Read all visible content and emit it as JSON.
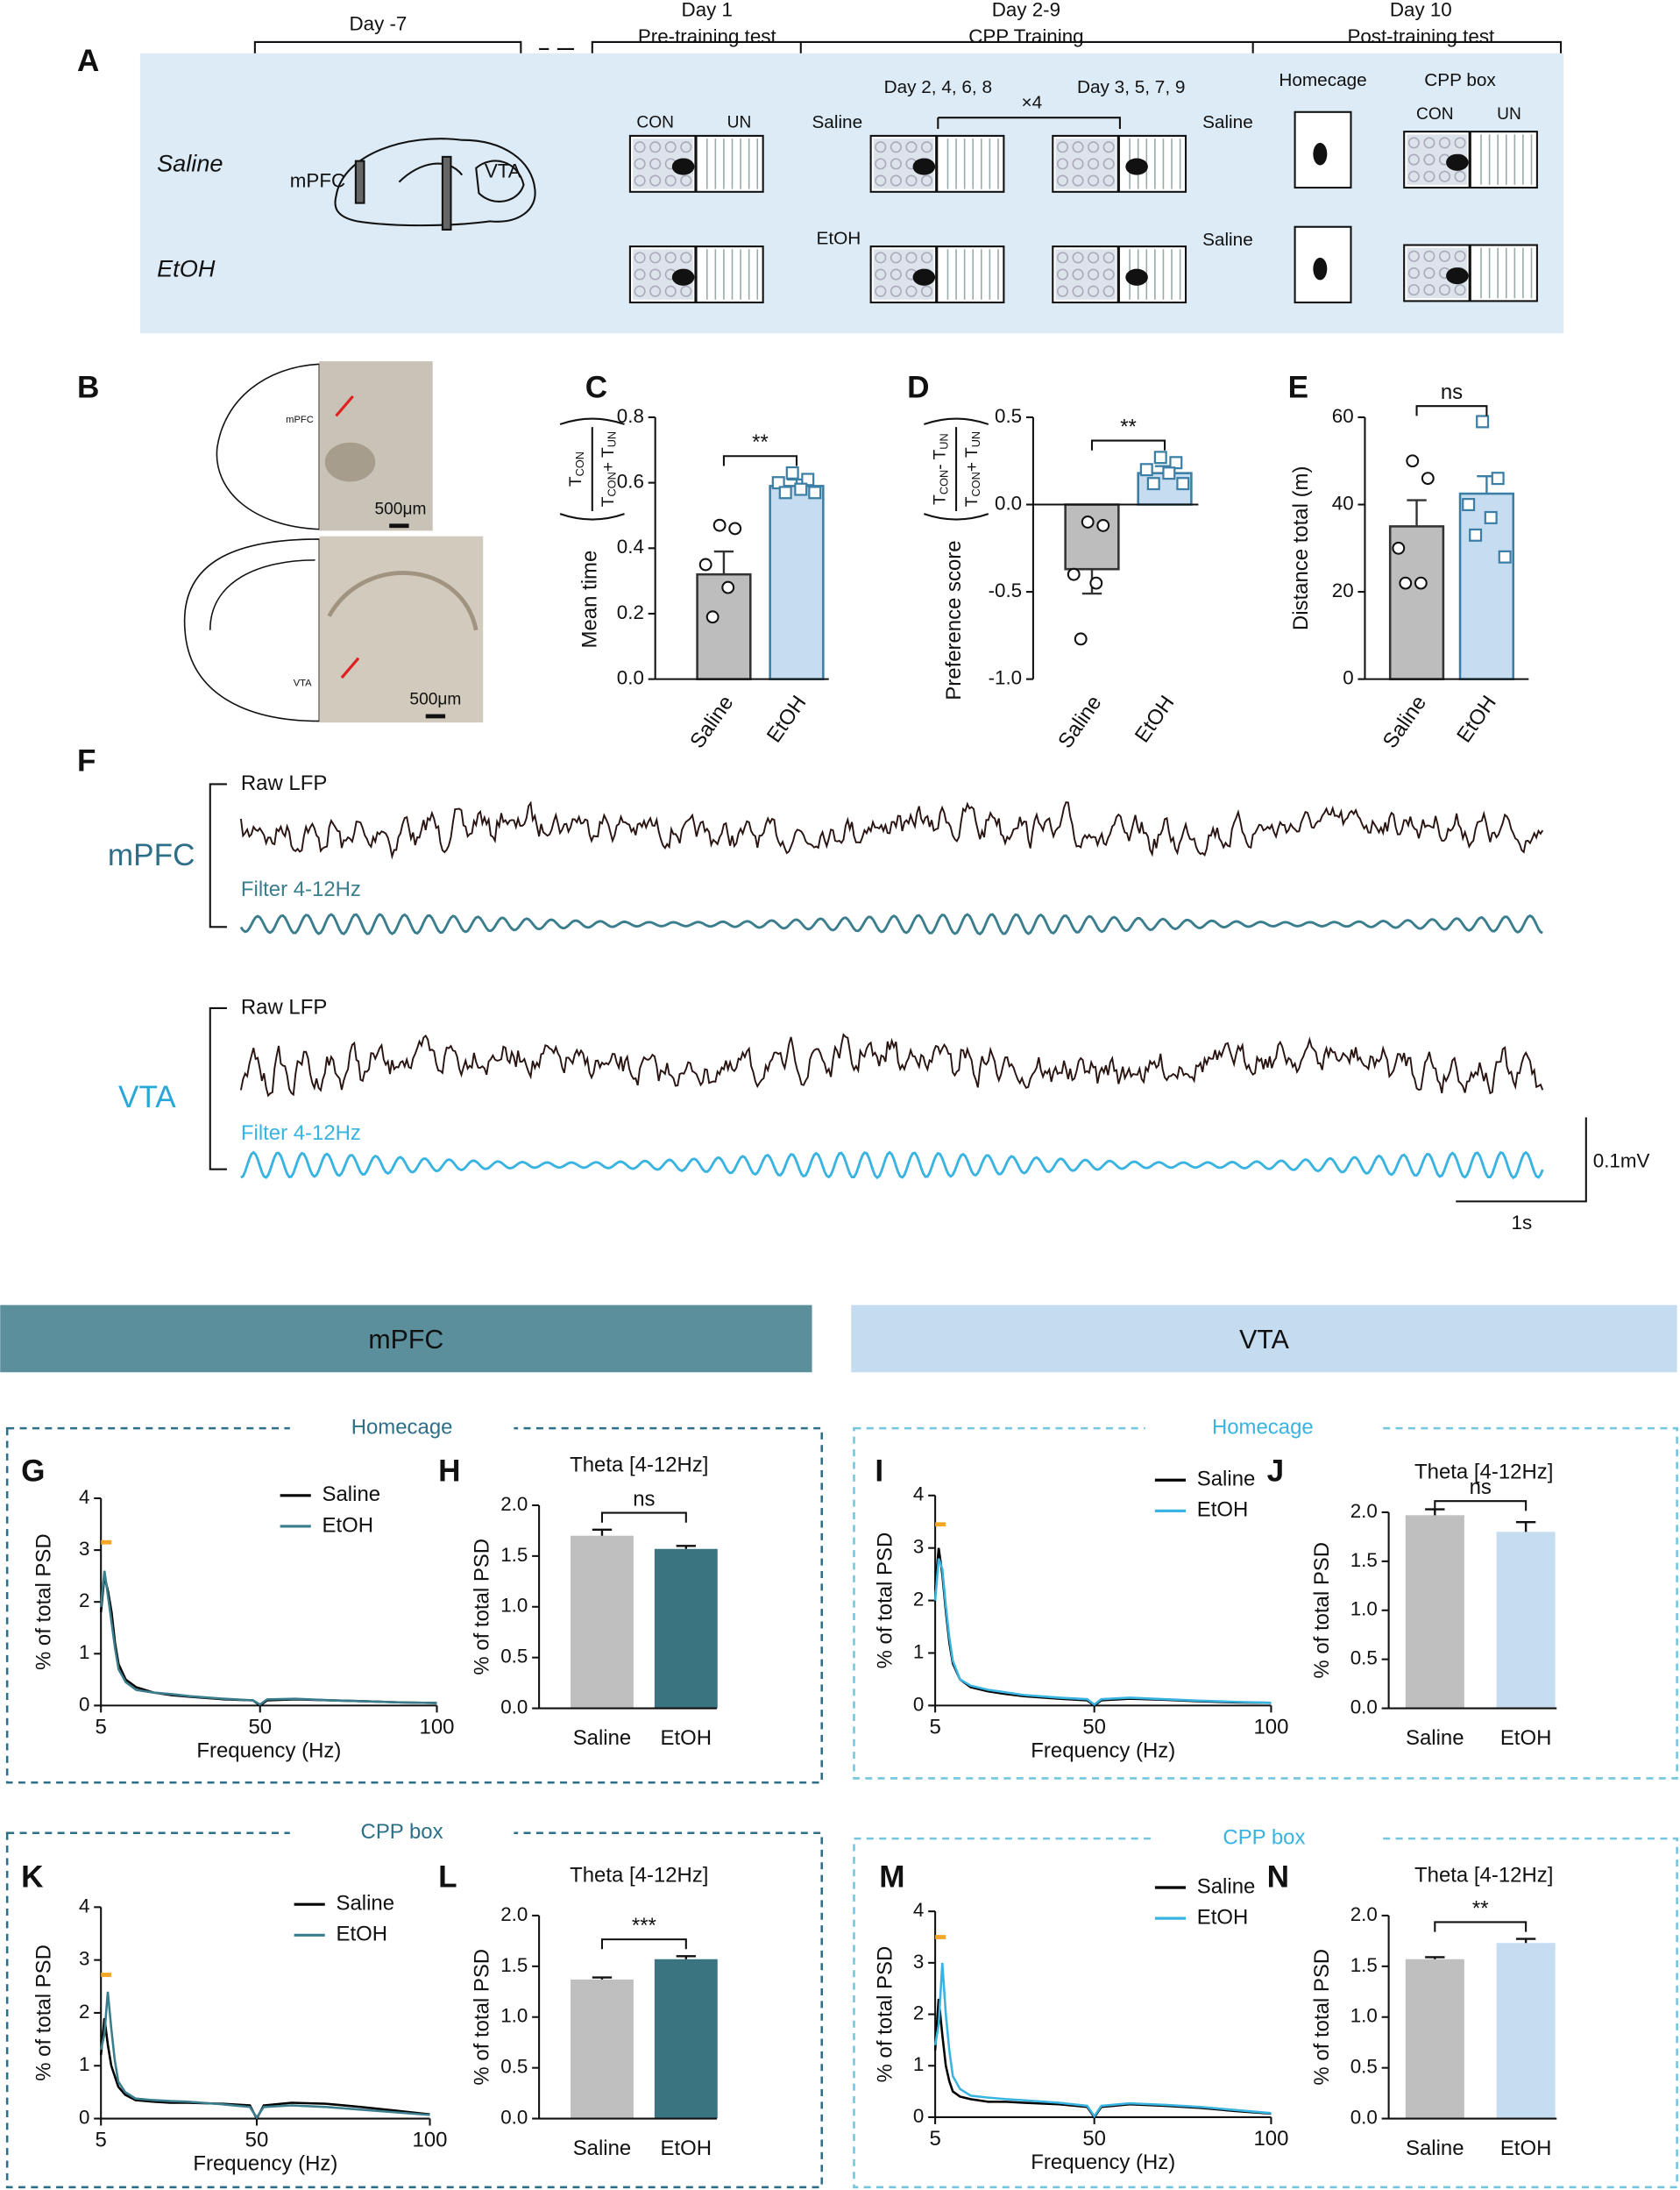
{
  "protocol": {
    "phases": [
      {
        "day": "Day -7"
      },
      {
        "day": "Day 1",
        "name": "Pre-training test"
      },
      {
        "day": "Day 2-9",
        "name": "CPP Training"
      },
      {
        "day": "Day 10",
        "name": "Post-training test"
      }
    ],
    "groups": [
      "Saline",
      "EtOH"
    ],
    "regions": [
      "mPFC",
      "VTA"
    ],
    "zones": [
      "CON",
      "UN"
    ],
    "schedule": [
      "Day 2, 4, 6, 8",
      "Day 3, 5, 7, 9"
    ],
    "repeat": "×4",
    "injections": [
      "Saline",
      "Saline",
      "EtOH",
      "Saline"
    ],
    "contexts": [
      "Homecage",
      "CPP box"
    ],
    "zones_post": [
      "CON",
      "UN"
    ]
  },
  "panels": [
    "A",
    "B",
    "F"
  ],
  "histology": {
    "labels": [
      "mPFC",
      "VTA"
    ],
    "scale_bars": [
      "500μm",
      "500μm"
    ]
  },
  "lfp": {
    "regions": [
      "mPFC",
      "VTA"
    ],
    "traces": [
      "Raw LFP",
      "Filter 4-12Hz",
      "Raw LFP",
      "Filter 4-12Hz"
    ],
    "scale_y": "0.1mV",
    "scale_x": "1s"
  },
  "sections": {
    "headers": [
      "mPFC",
      "VTA"
    ],
    "boxes": [
      "Homecage",
      "Homecage",
      "CPP box",
      "CPP box"
    ]
  },
  "chart_data": [
    {
      "panel": "C",
      "type": "bar",
      "categories": [
        "Saline",
        "EtOH"
      ],
      "values": [
        0.32,
        0.59
      ],
      "errors": [
        0.07,
        0.02
      ],
      "points": [
        [
          0.47,
          0.46,
          0.35,
          0.28,
          0.19
        ],
        [
          0.63,
          0.61,
          0.6,
          0.58,
          0.57,
          0.57
        ]
      ],
      "colors": [
        "#bdbdbd",
        "#c6dcf0"
      ],
      "edge_colors": [
        "#333333",
        "#3b7fa6"
      ],
      "point_markers": [
        "circle",
        "square"
      ],
      "y_label": "Mean time",
      "y_label_fraction": {
        "numerator": [
          "T",
          "CON"
        ],
        "denominator": [
          "T",
          "CON",
          "+ T",
          "UN"
        ]
      },
      "ylim": [
        0,
        0.8
      ],
      "yticks": [
        {
          "value": 0,
          "label": "0.0"
        },
        0.2,
        0.4,
        0.6,
        0.8
      ],
      "significance": "**"
    },
    {
      "panel": "D",
      "type": "bar",
      "categories": [
        "Saline",
        "EtOH"
      ],
      "values": [
        -0.37,
        0.18
      ],
      "errors": [
        0.14,
        0.04
      ],
      "points": [
        [
          -0.1,
          -0.12,
          -0.4,
          -0.45,
          -0.77
        ],
        [
          0.27,
          0.24,
          0.2,
          0.18,
          0.12,
          0.12
        ]
      ],
      "colors": [
        "#bdbdbd",
        "#c6dcf0"
      ],
      "edge_colors": [
        "#333333",
        "#3b7fa6"
      ],
      "point_markers": [
        "circle",
        "square"
      ],
      "y_label": "Preference score",
      "y_label_fraction": {
        "numerator": [
          "T",
          "CON",
          "- T",
          "UN"
        ],
        "denominator": [
          "T",
          "CON",
          "+ T",
          "UN"
        ]
      },
      "ylim": [
        -1,
        0.5
      ],
      "yticks": [
        {
          "value": -1,
          "label": "-1.0"
        },
        -0.5,
        {
          "value": 0,
          "label": "0.0"
        },
        0.5
      ],
      "significance": "**"
    },
    {
      "panel": "E",
      "type": "bar",
      "categories": [
        "Saline",
        "EtOH"
      ],
      "values": [
        35,
        42.5
      ],
      "errors": [
        6,
        4
      ],
      "points": [
        [
          50,
          46,
          30,
          22,
          22
        ],
        [
          59,
          46,
          40,
          37,
          33,
          28
        ]
      ],
      "colors": [
        "#bdbdbd",
        "#c6dcf0"
      ],
      "edge_colors": [
        "#333333",
        "#3b7fa6"
      ],
      "point_markers": [
        "circle",
        "square"
      ],
      "y_label": "Distance total (m)",
      "ylim": [
        0,
        60
      ],
      "yticks": [
        0,
        20,
        40,
        60
      ],
      "significance": "ns"
    },
    {
      "panel": "G",
      "type": "line",
      "x": [
        5,
        6,
        7,
        8,
        9,
        10,
        12,
        15,
        20,
        25,
        30,
        40,
        48,
        50,
        52,
        60,
        70,
        80,
        90,
        100
      ],
      "series": [
        {
          "name": "Saline",
          "color": "#000000",
          "values": [
            1.8,
            2.5,
            2.2,
            1.8,
            1.2,
            0.8,
            0.5,
            0.35,
            0.25,
            0.2,
            0.17,
            0.12,
            0.1,
            0.0,
            0.1,
            0.12,
            0.1,
            0.08,
            0.06,
            0.05
          ]
        },
        {
          "name": "EtOH",
          "color": "#3a7d8c",
          "values": [
            1.9,
            2.6,
            2.1,
            1.6,
            1.1,
            0.7,
            0.45,
            0.3,
            0.25,
            0.22,
            0.18,
            0.13,
            0.1,
            0.02,
            0.12,
            0.13,
            0.1,
            0.08,
            0.06,
            0.05
          ]
        }
      ],
      "x_label": "Frequency (Hz)",
      "y_label": "% of total PSD",
      "xlim": [
        5,
        100
      ],
      "xticks": [
        5,
        50,
        100
      ],
      "ylim": [
        0,
        4
      ],
      "yticks": [
        0,
        1,
        2,
        3,
        4
      ],
      "marker": {
        "x": [
          5,
          8
        ],
        "y": 3.15,
        "color": "#f5a623"
      }
    },
    {
      "panel": "H",
      "type": "bar",
      "title": "Theta [4-12Hz]",
      "categories": [
        "Saline",
        "EtOH"
      ],
      "values": [
        1.7,
        1.57
      ],
      "errors": [
        0.06,
        0.03
      ],
      "colors": [
        "#bfbfbf",
        "#3a7480"
      ],
      "y_label": "% of total PSD",
      "ylim": [
        0,
        2
      ],
      "yticks": [
        {
          "value": 0,
          "label": "0.0"
        },
        0.5,
        {
          "value": 1,
          "label": "1.0"
        },
        1.5,
        {
          "value": 2,
          "label": "2.0"
        }
      ],
      "significance": "ns"
    },
    {
      "panel": "I",
      "type": "line",
      "x": [
        5,
        6,
        7,
        8,
        9,
        10,
        12,
        15,
        20,
        25,
        30,
        40,
        48,
        50,
        52,
        60,
        70,
        80,
        90,
        100
      ],
      "series": [
        {
          "name": "Saline",
          "color": "#000000",
          "values": [
            2.2,
            3.0,
            2.5,
            1.8,
            1.2,
            0.8,
            0.5,
            0.35,
            0.27,
            0.22,
            0.18,
            0.13,
            0.1,
            0.0,
            0.1,
            0.13,
            0.11,
            0.08,
            0.06,
            0.05
          ]
        },
        {
          "name": "EtOH",
          "color": "#39b3e0",
          "values": [
            2.0,
            2.8,
            2.6,
            1.9,
            1.3,
            0.85,
            0.5,
            0.38,
            0.3,
            0.25,
            0.2,
            0.15,
            0.12,
            0.02,
            0.12,
            0.15,
            0.12,
            0.09,
            0.07,
            0.05
          ]
        }
      ],
      "x_label": "Frequency (Hz)",
      "y_label": "% of total PSD",
      "xlim": [
        5,
        100
      ],
      "xticks": [
        5,
        50,
        100
      ],
      "ylim": [
        0,
        4
      ],
      "yticks": [
        0,
        1,
        2,
        3,
        4
      ],
      "marker": {
        "x": [
          5,
          8
        ],
        "y": 3.45,
        "color": "#f5a623"
      }
    },
    {
      "panel": "J",
      "type": "bar",
      "title": "Theta [4-12Hz]",
      "categories": [
        "Saline",
        "EtOH"
      ],
      "values": [
        1.97,
        1.8
      ],
      "errors": [
        0.06,
        0.1
      ],
      "colors": [
        "#bfbfbf",
        "#c6dcf0"
      ],
      "y_label": "% of total PSD",
      "ylim": [
        0,
        2
      ],
      "yticks": [
        {
          "value": 0,
          "label": "0.0"
        },
        0.5,
        {
          "value": 1,
          "label": "1.0"
        },
        1.5,
        {
          "value": 2,
          "label": "2.0"
        }
      ],
      "significance": "ns"
    },
    {
      "panel": "K",
      "type": "line",
      "x": [
        5,
        6,
        7,
        8,
        9,
        10,
        12,
        15,
        20,
        25,
        30,
        40,
        48,
        50,
        52,
        60,
        70,
        80,
        90,
        100
      ],
      "series": [
        {
          "name": "Saline",
          "color": "#000000",
          "values": [
            1.2,
            1.9,
            1.4,
            1.0,
            0.8,
            0.6,
            0.45,
            0.35,
            0.32,
            0.3,
            0.3,
            0.28,
            0.25,
            0.0,
            0.25,
            0.3,
            0.28,
            0.22,
            0.15,
            0.08
          ]
        },
        {
          "name": "EtOH",
          "color": "#3a7d8c",
          "values": [
            1.3,
            1.6,
            2.4,
            1.7,
            1.1,
            0.7,
            0.5,
            0.38,
            0.35,
            0.33,
            0.32,
            0.27,
            0.22,
            0.02,
            0.22,
            0.25,
            0.22,
            0.17,
            0.12,
            0.07
          ]
        }
      ],
      "x_label": "Frequency (Hz)",
      "y_label": "% of total PSD",
      "xlim": [
        5,
        100
      ],
      "xticks": [
        5,
        50,
        100
      ],
      "ylim": [
        0,
        4
      ],
      "yticks": [
        0,
        1,
        2,
        3,
        4
      ],
      "marker": {
        "x": [
          5,
          8
        ],
        "y": 2.72,
        "color": "#f5a623"
      }
    },
    {
      "panel": "L",
      "type": "bar",
      "title": "Theta [4-12Hz]",
      "categories": [
        "Saline",
        "EtOH"
      ],
      "values": [
        1.37,
        1.57
      ],
      "errors": [
        0.02,
        0.03
      ],
      "colors": [
        "#bfbfbf",
        "#3a7480"
      ],
      "y_label": "% of total PSD",
      "ylim": [
        0,
        2
      ],
      "yticks": [
        {
          "value": 0,
          "label": "0.0"
        },
        0.5,
        {
          "value": 1,
          "label": "1.0"
        },
        1.5,
        {
          "value": 2,
          "label": "2.0"
        }
      ],
      "significance": "***"
    },
    {
      "panel": "M",
      "type": "line",
      "x": [
        5,
        6,
        7,
        8,
        9,
        10,
        12,
        15,
        20,
        25,
        30,
        40,
        48,
        50,
        52,
        60,
        70,
        80,
        90,
        100
      ],
      "series": [
        {
          "name": "Saline",
          "color": "#000000",
          "values": [
            1.3,
            2.3,
            1.6,
            1.0,
            0.7,
            0.5,
            0.4,
            0.35,
            0.3,
            0.3,
            0.28,
            0.25,
            0.2,
            0.0,
            0.2,
            0.25,
            0.22,
            0.18,
            0.12,
            0.07
          ]
        },
        {
          "name": "EtOH",
          "color": "#39b3e0",
          "values": [
            1.4,
            1.8,
            3.0,
            2.0,
            1.3,
            0.8,
            0.55,
            0.42,
            0.38,
            0.35,
            0.33,
            0.28,
            0.22,
            0.02,
            0.22,
            0.27,
            0.24,
            0.2,
            0.14,
            0.08
          ]
        }
      ],
      "x_label": "Frequency (Hz)",
      "y_label": "% of total PSD",
      "xlim": [
        5,
        100
      ],
      "xticks": [
        5,
        50,
        100
      ],
      "ylim": [
        0,
        4
      ],
      "yticks": [
        0,
        1,
        2,
        3,
        4
      ],
      "marker": {
        "x": [
          5,
          8
        ],
        "y": 3.5,
        "color": "#f5a623"
      }
    },
    {
      "panel": "N",
      "type": "bar",
      "title": "Theta [4-12Hz]",
      "categories": [
        "Saline",
        "EtOH"
      ],
      "values": [
        1.57,
        1.73
      ],
      "errors": [
        0.02,
        0.04
      ],
      "colors": [
        "#bfbfbf",
        "#c6dcf0"
      ],
      "y_label": "% of total PSD",
      "ylim": [
        0,
        2
      ],
      "yticks": [
        {
          "value": 0,
          "label": "0.0"
        },
        0.5,
        {
          "value": 1,
          "label": "1.0"
        },
        1.5,
        {
          "value": 2,
          "label": "2.0"
        }
      ],
      "significance": "**"
    }
  ]
}
